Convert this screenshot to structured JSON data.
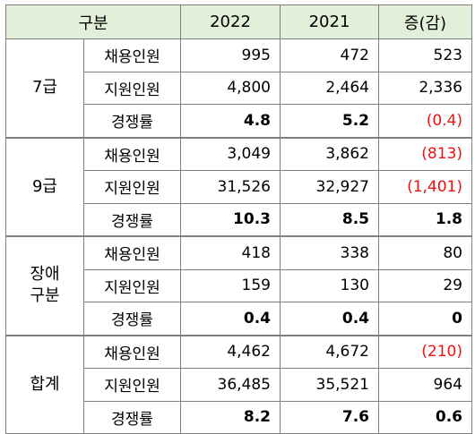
{
  "header": {
    "category": "구분",
    "col_2022": "2022",
    "col_2021": "2021",
    "col_change": "증(감)"
  },
  "groups": [
    {
      "name": "7급",
      "rows": [
        {
          "item": "채용인원",
          "y2022": "995",
          "y2021": "472",
          "change": "523",
          "change_negative": false
        },
        {
          "item": "지원인원",
          "y2022": "4,800",
          "y2021": "2,464",
          "change": "2,336",
          "change_negative": false
        },
        {
          "item": "경쟁률",
          "y2022": "4.8",
          "y2021": "5.2",
          "change": "(0.4)",
          "change_negative": true
        }
      ]
    },
    {
      "name": "9급",
      "rows": [
        {
          "item": "채용인원",
          "y2022": "3,049",
          "y2021": "3,862",
          "change": "(813)",
          "change_negative": true
        },
        {
          "item": "지원인원",
          "y2022": "31,526",
          "y2021": "32,927",
          "change": "(1,401)",
          "change_negative": true
        },
        {
          "item": "경쟁률",
          "y2022": "10.3",
          "y2021": "8.5",
          "change": "1.8",
          "change_negative": false
        }
      ]
    },
    {
      "name_line1": "장애",
      "name_line2": "구분",
      "rows": [
        {
          "item": "채용인원",
          "y2022": "418",
          "y2021": "338",
          "change": "80",
          "change_negative": false
        },
        {
          "item": "지원인원",
          "y2022": "159",
          "y2021": "130",
          "change": "29",
          "change_negative": false
        },
        {
          "item": "경쟁률",
          "y2022": "0.4",
          "y2021": "0.4",
          "change": "0",
          "change_negative": false
        }
      ]
    },
    {
      "name": "합계",
      "rows": [
        {
          "item": "채용인원",
          "y2022": "4,462",
          "y2021": "4,672",
          "change": "(210)",
          "change_negative": true
        },
        {
          "item": "지원인원",
          "y2022": "36,485",
          "y2021": "35,521",
          "change": "964",
          "change_negative": false
        },
        {
          "item": "경쟁률",
          "y2022": "8.2",
          "y2021": "7.6",
          "change": "0.6",
          "change_negative": false
        }
      ]
    }
  ],
  "colors": {
    "header_bg": "#e2efd9",
    "negative_text": "#ee1111",
    "border": "#7f7f7f"
  }
}
